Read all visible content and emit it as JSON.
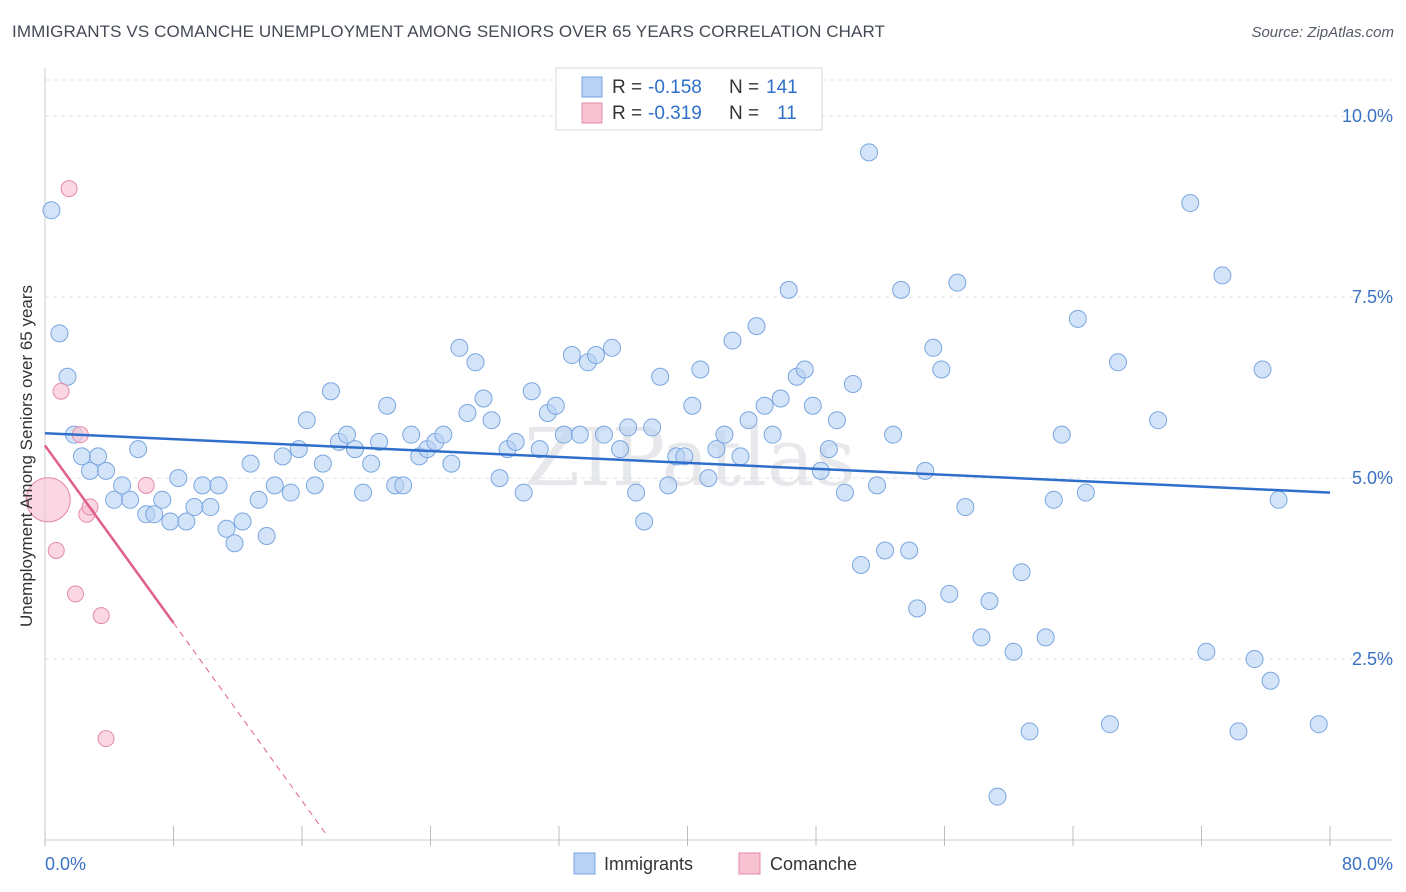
{
  "title": "IMMIGRANTS VS COMANCHE UNEMPLOYMENT AMONG SENIORS OVER 65 YEARS CORRELATION CHART",
  "source": "Source: ZipAtlas.com",
  "watermark": "ZIPatlas",
  "colors": {
    "immigrants_fill": "#b7d2f3",
    "immigrants_stroke": "#7aa6e0",
    "immigrants_line": "#2f6fcb",
    "comanche_fill": "#f7c2d2",
    "comanche_stroke": "#e68aa8",
    "comanche_line": "#e0608a",
    "grid": "#dde1e6",
    "tick_text": "#3a72c4"
  },
  "legend": {
    "rows": [
      {
        "r_label": "R = ",
        "r_value": "-0.158",
        "n_label": "N = ",
        "n_value": "141"
      },
      {
        "r_label": "R = ",
        "r_value": "-0.319",
        "n_label": "N = ",
        "n_value": "11"
      }
    ]
  },
  "bottom_legend": [
    "Immigrants",
    "Comanche"
  ],
  "chart_data": {
    "type": "scatter",
    "title": "IMMIGRANTS VS COMANCHE UNEMPLOYMENT AMONG SENIORS OVER 65 YEARS CORRELATION CHART",
    "xlabel": "",
    "ylabel": "Unemployment Among Seniors over 65 years",
    "xlim": [
      0,
      80
    ],
    "ylim": [
      0,
      10.5
    ],
    "x_tick_labels": [
      "0.0%",
      "80.0%"
    ],
    "y_ticks": [
      2.5,
      5.0,
      7.5,
      10.0
    ],
    "y_tick_labels": [
      "2.5%",
      "5.0%",
      "7.5%",
      "10.0%"
    ],
    "grid": true,
    "legend_position": "top-center",
    "series": [
      {
        "name": "Immigrants",
        "R": -0.158,
        "N": 141,
        "trend": {
          "x": [
            0,
            80
          ],
          "y": [
            5.62,
            4.8
          ]
        },
        "points": [
          [
            0.4,
            8.7
          ],
          [
            0.9,
            7.0
          ],
          [
            1.4,
            6.4
          ],
          [
            1.8,
            5.6
          ],
          [
            2.3,
            5.3
          ],
          [
            2.8,
            5.1
          ],
          [
            3.3,
            5.3
          ],
          [
            3.8,
            5.1
          ],
          [
            4.3,
            4.7
          ],
          [
            4.8,
            4.9
          ],
          [
            5.3,
            4.7
          ],
          [
            5.8,
            5.4
          ],
          [
            6.3,
            4.5
          ],
          [
            6.8,
            4.5
          ],
          [
            7.3,
            4.7
          ],
          [
            7.8,
            4.4
          ],
          [
            8.3,
            5.0
          ],
          [
            8.8,
            4.4
          ],
          [
            9.3,
            4.6
          ],
          [
            9.8,
            4.9
          ],
          [
            10.3,
            4.6
          ],
          [
            10.8,
            4.9
          ],
          [
            11.3,
            4.3
          ],
          [
            11.8,
            4.1
          ],
          [
            12.3,
            4.4
          ],
          [
            12.8,
            5.2
          ],
          [
            13.3,
            4.7
          ],
          [
            13.8,
            4.2
          ],
          [
            14.3,
            4.9
          ],
          [
            14.8,
            5.3
          ],
          [
            15.3,
            4.8
          ],
          [
            15.8,
            5.4
          ],
          [
            16.3,
            5.8
          ],
          [
            16.8,
            4.9
          ],
          [
            17.3,
            5.2
          ],
          [
            17.8,
            6.2
          ],
          [
            18.3,
            5.5
          ],
          [
            18.8,
            5.6
          ],
          [
            19.3,
            5.4
          ],
          [
            19.8,
            4.8
          ],
          [
            20.3,
            5.2
          ],
          [
            20.8,
            5.5
          ],
          [
            21.3,
            6.0
          ],
          [
            21.8,
            4.9
          ],
          [
            22.3,
            4.9
          ],
          [
            22.8,
            5.6
          ],
          [
            23.3,
            5.3
          ],
          [
            23.8,
            5.4
          ],
          [
            24.3,
            5.5
          ],
          [
            24.8,
            5.6
          ],
          [
            25.3,
            5.2
          ],
          [
            25.8,
            6.8
          ],
          [
            26.3,
            5.9
          ],
          [
            26.8,
            6.6
          ],
          [
            27.3,
            6.1
          ],
          [
            27.8,
            5.8
          ],
          [
            28.3,
            5.0
          ],
          [
            28.8,
            5.4
          ],
          [
            29.3,
            5.5
          ],
          [
            29.8,
            4.8
          ],
          [
            30.3,
            6.2
          ],
          [
            30.8,
            5.4
          ],
          [
            31.3,
            5.9
          ],
          [
            31.8,
            6.0
          ],
          [
            32.3,
            5.6
          ],
          [
            32.8,
            6.7
          ],
          [
            33.3,
            5.6
          ],
          [
            33.8,
            6.6
          ],
          [
            34.3,
            6.7
          ],
          [
            34.8,
            5.6
          ],
          [
            35.3,
            6.8
          ],
          [
            35.8,
            5.4
          ],
          [
            36.3,
            5.7
          ],
          [
            36.8,
            4.8
          ],
          [
            37.3,
            4.4
          ],
          [
            37.8,
            5.7
          ],
          [
            38.3,
            6.4
          ],
          [
            38.8,
            4.9
          ],
          [
            39.3,
            5.3
          ],
          [
            39.8,
            5.3
          ],
          [
            40.3,
            6.0
          ],
          [
            40.8,
            6.5
          ],
          [
            41.3,
            5.0
          ],
          [
            41.8,
            5.4
          ],
          [
            42.3,
            5.6
          ],
          [
            42.8,
            6.9
          ],
          [
            43.3,
            5.3
          ],
          [
            43.8,
            5.8
          ],
          [
            44.3,
            7.1
          ],
          [
            44.8,
            6.0
          ],
          [
            45.3,
            5.6
          ],
          [
            45.8,
            6.1
          ],
          [
            46.3,
            7.6
          ],
          [
            46.8,
            6.4
          ],
          [
            47.3,
            6.5
          ],
          [
            47.8,
            6.0
          ],
          [
            48.3,
            5.1
          ],
          [
            48.8,
            5.4
          ],
          [
            49.3,
            5.8
          ],
          [
            49.8,
            4.8
          ],
          [
            50.3,
            6.3
          ],
          [
            50.8,
            3.8
          ],
          [
            51.3,
            9.5
          ],
          [
            51.8,
            4.9
          ],
          [
            52.3,
            4.0
          ],
          [
            52.8,
            5.6
          ],
          [
            53.3,
            7.6
          ],
          [
            53.8,
            4.0
          ],
          [
            54.3,
            3.2
          ],
          [
            54.8,
            5.1
          ],
          [
            55.3,
            6.8
          ],
          [
            55.8,
            6.5
          ],
          [
            56.3,
            3.4
          ],
          [
            56.8,
            7.7
          ],
          [
            57.3,
            4.6
          ],
          [
            58.3,
            2.8
          ],
          [
            58.8,
            3.3
          ],
          [
            59.3,
            0.6
          ],
          [
            60.3,
            2.6
          ],
          [
            60.8,
            3.7
          ],
          [
            61.3,
            1.5
          ],
          [
            62.3,
            2.8
          ],
          [
            62.8,
            4.7
          ],
          [
            63.3,
            5.6
          ],
          [
            64.3,
            7.2
          ],
          [
            64.8,
            4.8
          ],
          [
            66.3,
            1.6
          ],
          [
            66.8,
            6.6
          ],
          [
            69.3,
            5.8
          ],
          [
            71.3,
            8.8
          ],
          [
            72.3,
            2.6
          ],
          [
            73.3,
            7.8
          ],
          [
            74.3,
            1.5
          ],
          [
            75.3,
            2.5
          ],
          [
            75.8,
            6.5
          ],
          [
            76.3,
            2.2
          ],
          [
            76.8,
            4.7
          ],
          [
            79.3,
            1.6
          ]
        ]
      },
      {
        "name": "Comanche",
        "R": -0.319,
        "N": 11,
        "trend": {
          "x": [
            0,
            8
          ],
          "y": [
            5.45,
            3.0
          ]
        },
        "trend_dashed": {
          "x": [
            8,
            17.5
          ],
          "y": [
            3.0,
            0.08
          ]
        },
        "points": [
          [
            0.2,
            4.7
          ],
          [
            1.0,
            6.2
          ],
          [
            1.5,
            9.0
          ],
          [
            2.2,
            5.6
          ],
          [
            2.6,
            4.5
          ],
          [
            2.8,
            4.6
          ],
          [
            0.7,
            4.0
          ],
          [
            1.9,
            3.4
          ],
          [
            3.5,
            3.1
          ],
          [
            6.3,
            4.9
          ],
          [
            3.8,
            1.4
          ]
        ]
      }
    ]
  }
}
